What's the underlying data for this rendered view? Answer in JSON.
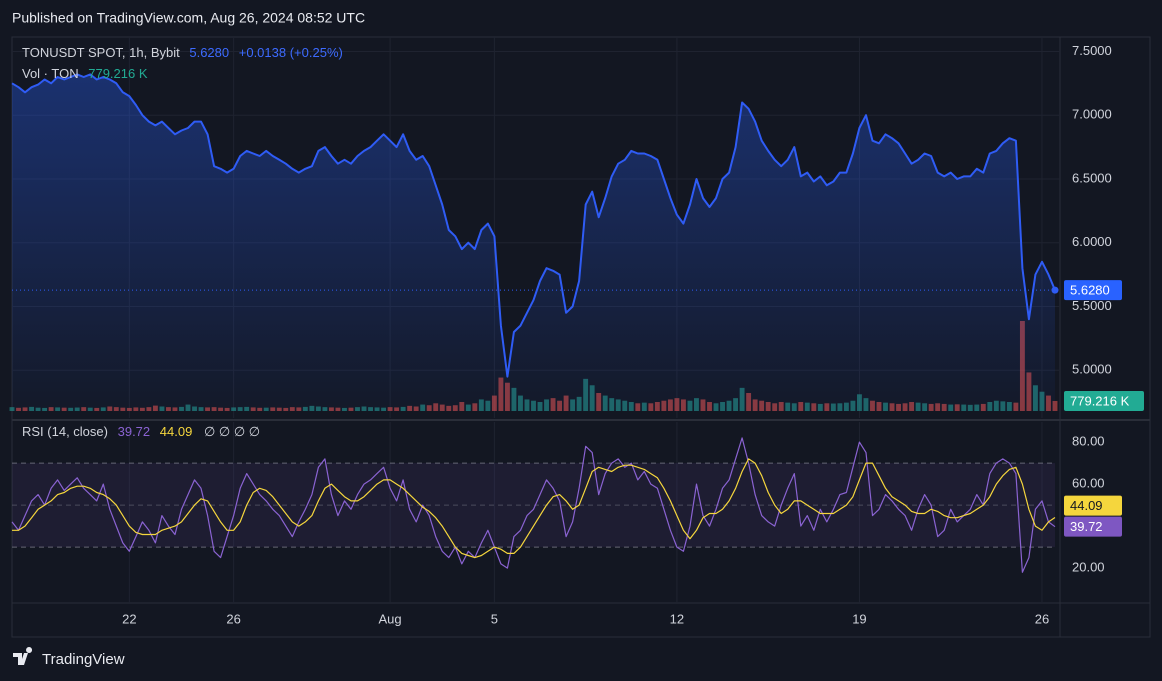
{
  "published": "Published on TradingView.com, Aug 26, 2024 08:52 UTC",
  "brand": "TradingView",
  "chart_data": [
    {
      "type": "line",
      "title": "TONUSDT SPOT, 1h, Bybit",
      "last_label": "5.6280",
      "change": "+0.0138 (+0.25%)",
      "series": [
        {
          "color": "#2f5cf5",
          "values": [
            7.25,
            7.22,
            7.18,
            7.22,
            7.24,
            7.28,
            7.25,
            7.3,
            7.28,
            7.3,
            7.32,
            7.3,
            7.32,
            7.28,
            7.3,
            7.28,
            7.25,
            7.18,
            7.15,
            7.08,
            7.0,
            6.95,
            6.92,
            6.95,
            6.9,
            6.85,
            6.88,
            6.9,
            6.95,
            6.95,
            6.85,
            6.6,
            6.58,
            6.55,
            6.58,
            6.68,
            6.72,
            6.7,
            6.68,
            6.72,
            6.68,
            6.65,
            6.62,
            6.58,
            6.55,
            6.58,
            6.6,
            6.72,
            6.75,
            6.68,
            6.62,
            6.65,
            6.62,
            6.68,
            6.72,
            6.75,
            6.8,
            6.85,
            6.8,
            6.75,
            6.85,
            6.72,
            6.65,
            6.68,
            6.6,
            6.45,
            6.3,
            6.1,
            6.05,
            5.95,
            6.0,
            5.95,
            6.1,
            6.15,
            6.05,
            5.35,
            4.95,
            5.3,
            5.35,
            5.45,
            5.55,
            5.7,
            5.8,
            5.78,
            5.75,
            5.45,
            5.5,
            5.7,
            6.3,
            6.4,
            6.2,
            6.35,
            6.52,
            6.62,
            6.65,
            6.72,
            6.7,
            6.7,
            6.68,
            6.65,
            6.5,
            6.35,
            6.22,
            6.15,
            6.3,
            6.5,
            6.35,
            6.28,
            6.35,
            6.5,
            6.55,
            6.75,
            7.1,
            7.05,
            6.95,
            6.8,
            6.72,
            6.65,
            6.6,
            6.65,
            6.75,
            6.52,
            6.55,
            6.48,
            6.52,
            6.45,
            6.48,
            6.55,
            6.55,
            6.7,
            6.9,
            7.0,
            6.8,
            6.78,
            6.85,
            6.82,
            6.78,
            6.7,
            6.62,
            6.65,
            6.7,
            6.68,
            6.55,
            6.52,
            6.55,
            6.5,
            6.52,
            6.52,
            6.58,
            6.55,
            6.7,
            6.72,
            6.78,
            6.82,
            6.8,
            5.8,
            5.4,
            5.75,
            5.85,
            5.75,
            5.628
          ]
        }
      ],
      "xlim": [
        0,
        160
      ],
      "xticks": [
        {
          "value": 18,
          "label": "22"
        },
        {
          "value": 34,
          "label": "26"
        },
        {
          "value": 58,
          "label": "Aug"
        },
        {
          "value": 74,
          "label": "5"
        },
        {
          "value": 102,
          "label": "12"
        },
        {
          "value": 130,
          "label": "19"
        },
        {
          "value": 158,
          "label": "26"
        }
      ],
      "ylim": [
        4.68,
        7.59
      ],
      "yticks": [
        {
          "value": 5.0,
          "label": "5.0000"
        },
        {
          "value": 5.5,
          "label": "5.5000"
        },
        {
          "value": 6.0,
          "label": "6.0000"
        },
        {
          "value": 6.5,
          "label": "6.5000"
        },
        {
          "value": 7.0,
          "label": "7.0000"
        },
        {
          "value": 7.5,
          "label": "7.5000"
        }
      ],
      "grid": true
    },
    {
      "type": "bar",
      "title": "Vol · TON",
      "last_label": "779.216 K",
      "up_color": "#26a69a",
      "down_color": "#ef5350",
      "values": [
        300,
        250,
        280,
        320,
        260,
        240,
        300,
        280,
        260,
        250,
        270,
        300,
        260,
        240,
        280,
        350,
        300,
        260,
        240,
        280,
        250,
        300,
        420,
        350,
        300,
        280,
        320,
        500,
        350,
        300,
        280,
        300,
        260,
        240,
        280,
        300,
        320,
        280,
        250,
        260,
        280,
        260,
        240,
        300,
        280,
        320,
        400,
        350,
        300,
        280,
        260,
        240,
        260,
        300,
        350,
        300,
        280,
        260,
        300,
        280,
        320,
        400,
        350,
        500,
        450,
        600,
        500,
        400,
        450,
        700,
        500,
        600,
        900,
        800,
        1200,
        2600,
        2200,
        1800,
        1200,
        900,
        800,
        700,
        900,
        1000,
        800,
        1200,
        900,
        1100,
        2500,
        2000,
        1400,
        1200,
        1000,
        900,
        800,
        700,
        600,
        650,
        600,
        700,
        800,
        900,
        1000,
        900,
        800,
        1000,
        900,
        700,
        600,
        700,
        800,
        1000,
        1800,
        1400,
        900,
        800,
        700,
        600,
        700,
        650,
        600,
        700,
        650,
        600,
        550,
        600,
        580,
        600,
        650,
        800,
        1300,
        1000,
        800,
        700,
        650,
        600,
        550,
        600,
        700,
        650,
        600,
        550,
        600,
        550,
        500,
        520,
        500,
        480,
        500,
        550,
        700,
        800,
        750,
        700,
        650,
        7000,
        3000,
        2000,
        1500,
        1200,
        779.216
      ]
    },
    {
      "type": "line",
      "title": "RSI (14, close)",
      "extra": "∅ ∅ ∅ ∅",
      "series": [
        {
          "color": "#8a63d2",
          "last_label": "39.72",
          "values": [
            42,
            38,
            45,
            52,
            55,
            50,
            58,
            62,
            57,
            60,
            63,
            58,
            55,
            52,
            60,
            48,
            40,
            32,
            28,
            35,
            42,
            38,
            32,
            45,
            40,
            36,
            48,
            55,
            62,
            58,
            45,
            28,
            25,
            35,
            45,
            58,
            65,
            60,
            55,
            52,
            48,
            45,
            40,
            35,
            42,
            48,
            55,
            68,
            72,
            55,
            45,
            52,
            48,
            55,
            60,
            62,
            65,
            68,
            58,
            52,
            62,
            48,
            42,
            50,
            45,
            35,
            28,
            25,
            30,
            22,
            28,
            25,
            32,
            38,
            30,
            22,
            20,
            35,
            38,
            45,
            48,
            55,
            62,
            58,
            52,
            35,
            42,
            58,
            78,
            75,
            55,
            65,
            70,
            72,
            68,
            70,
            62,
            66,
            60,
            58,
            48,
            38,
            30,
            28,
            40,
            60,
            45,
            40,
            48,
            58,
            62,
            72,
            82,
            70,
            55,
            45,
            42,
            40,
            50,
            58,
            65,
            40,
            45,
            38,
            48,
            42,
            48,
            55,
            56,
            68,
            80,
            75,
            45,
            48,
            55,
            52,
            48,
            45,
            38,
            48,
            55,
            50,
            35,
            38,
            48,
            42,
            45,
            48,
            55,
            50,
            65,
            70,
            72,
            70,
            65,
            18,
            25,
            48,
            52,
            42,
            39.72
          ]
        },
        {
          "color": "#f5d63d",
          "last_label": "44.09",
          "values": [
            38,
            38,
            40,
            44,
            48,
            50,
            52,
            55,
            56,
            58,
            59,
            59,
            58,
            56,
            55,
            53,
            50,
            45,
            40,
            37,
            36,
            36,
            36,
            38,
            39,
            40,
            42,
            46,
            50,
            53,
            52,
            47,
            42,
            38,
            38,
            42,
            50,
            56,
            58,
            57,
            54,
            50,
            46,
            42,
            40,
            42,
            45,
            52,
            58,
            60,
            57,
            54,
            52,
            52,
            54,
            57,
            60,
            62,
            62,
            60,
            58,
            55,
            52,
            49,
            47,
            44,
            40,
            35,
            30,
            27,
            26,
            25,
            26,
            28,
            30,
            29,
            27,
            27,
            30,
            35,
            40,
            45,
            50,
            54,
            55,
            52,
            48,
            50,
            58,
            66,
            68,
            67,
            66,
            68,
            69,
            69,
            68,
            67,
            65,
            63,
            58,
            52,
            45,
            38,
            34,
            38,
            44,
            46,
            46,
            48,
            52,
            58,
            66,
            72,
            70,
            64,
            56,
            50,
            46,
            48,
            52,
            52,
            50,
            48,
            46,
            46,
            46,
            48,
            50,
            54,
            62,
            70,
            70,
            64,
            58,
            54,
            52,
            50,
            47,
            46,
            46,
            48,
            47,
            45,
            44,
            44,
            45,
            46,
            48,
            50,
            54,
            60,
            64,
            67,
            68,
            60,
            48,
            40,
            38,
            42,
            44.09
          ]
        }
      ],
      "ylim": [
        4.8,
        86.7
      ],
      "yticks": [
        {
          "value": 20,
          "label": "20.00"
        },
        {
          "value": 60,
          "label": "60.00"
        },
        {
          "value": 80,
          "label": "80.00"
        }
      ],
      "levels": [
        70,
        50,
        30
      ]
    }
  ]
}
